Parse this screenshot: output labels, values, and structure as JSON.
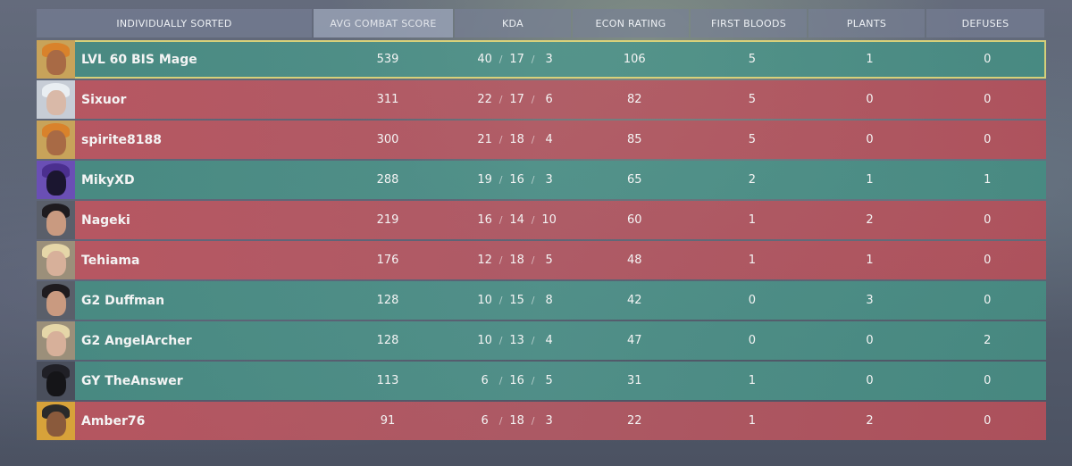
{
  "headers": {
    "player": "INDIVIDUALLY SORTED",
    "acs": "AVG COMBAT SCORE",
    "kda": "KDA",
    "econ": "ECON RATING",
    "first_bloods": "FIRST BLOODS",
    "plants": "PLANTS",
    "defuses": "DEFUSES"
  },
  "sorted_column": "acs",
  "kda_separator": "/",
  "colors": {
    "team_green": "#4f968c",
    "team_red": "#bd5a66",
    "highlight": "#f0dc78"
  },
  "players": [
    {
      "name": "LVL 60 BIS Mage",
      "team": "green",
      "self": true,
      "agent_icon": "agent-portrait-orange-icon",
      "acs": "539",
      "k": "40",
      "d": "17",
      "a": "3",
      "econ": "106",
      "fb": "5",
      "plants": "1",
      "defuses": "0"
    },
    {
      "name": "Sixuor",
      "team": "red",
      "self": false,
      "agent_icon": "agent-portrait-white-hair-icon",
      "acs": "311",
      "k": "22",
      "d": "17",
      "a": "6",
      "econ": "82",
      "fb": "5",
      "plants": "0",
      "defuses": "0"
    },
    {
      "name": "spirite8188",
      "team": "red",
      "self": false,
      "agent_icon": "agent-portrait-orange-icon",
      "acs": "300",
      "k": "21",
      "d": "18",
      "a": "4",
      "econ": "85",
      "fb": "5",
      "plants": "0",
      "defuses": "0"
    },
    {
      "name": "MikyXD",
      "team": "green",
      "self": false,
      "agent_icon": "agent-portrait-purple-hood-icon",
      "acs": "288",
      "k": "19",
      "d": "16",
      "a": "3",
      "econ": "65",
      "fb": "2",
      "plants": "1",
      "defuses": "1"
    },
    {
      "name": "Nageki",
      "team": "red",
      "self": false,
      "agent_icon": "agent-portrait-dark-hair-icon",
      "acs": "219",
      "k": "16",
      "d": "14",
      "a": "10",
      "econ": "60",
      "fb": "1",
      "plants": "2",
      "defuses": "0"
    },
    {
      "name": "Tehiama",
      "team": "red",
      "self": false,
      "agent_icon": "agent-portrait-blonde-icon",
      "acs": "176",
      "k": "12",
      "d": "18",
      "a": "5",
      "econ": "48",
      "fb": "1",
      "plants": "1",
      "defuses": "0"
    },
    {
      "name": "G2 Duffman",
      "team": "green",
      "self": false,
      "agent_icon": "agent-portrait-dark-hair-icon",
      "acs": "128",
      "k": "10",
      "d": "15",
      "a": "8",
      "econ": "42",
      "fb": "0",
      "plants": "3",
      "defuses": "0"
    },
    {
      "name": "G2 AngelArcher",
      "team": "green",
      "self": false,
      "agent_icon": "agent-portrait-blonde-icon",
      "acs": "128",
      "k": "10",
      "d": "13",
      "a": "4",
      "econ": "47",
      "fb": "0",
      "plants": "0",
      "defuses": "2"
    },
    {
      "name": "GY TheAnswer",
      "team": "green",
      "self": false,
      "agent_icon": "agent-portrait-masked-icon",
      "acs": "113",
      "k": "6",
      "d": "16",
      "a": "5",
      "econ": "31",
      "fb": "1",
      "plants": "0",
      "defuses": "0"
    },
    {
      "name": "Amber76",
      "team": "red",
      "self": false,
      "agent_icon": "agent-portrait-bandana-icon",
      "acs": "91",
      "k": "6",
      "d": "18",
      "a": "3",
      "econ": "22",
      "fb": "1",
      "plants": "2",
      "defuses": "0"
    }
  ]
}
